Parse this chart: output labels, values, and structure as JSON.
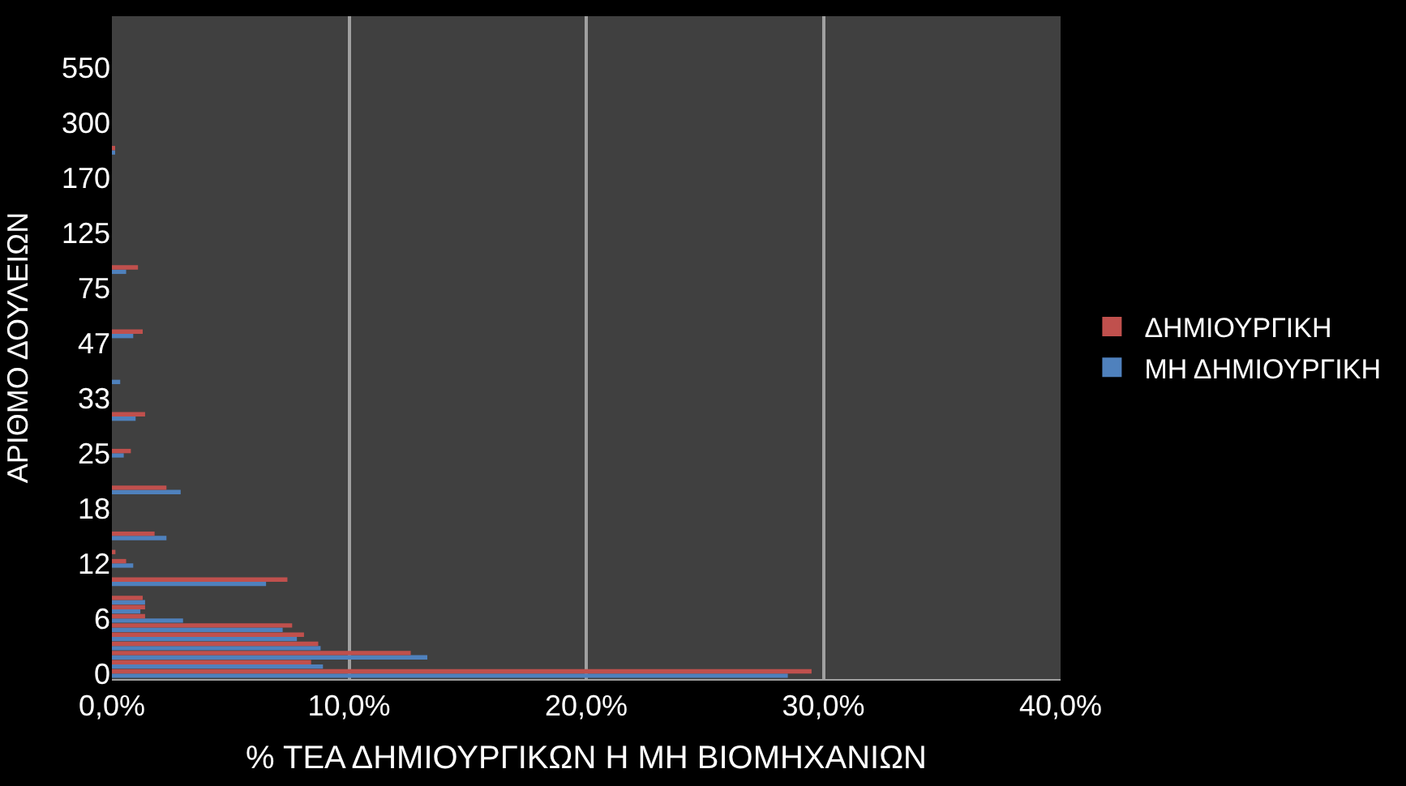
{
  "chart_data": {
    "type": "bar",
    "orientation": "horizontal",
    "xlabel": "% ΤΕΑ ΔΗΜΙΟΥΡΓΙΚΩΝ Η ΜΗ ΒΙΟΜΗΧΑΝΙΩΝ",
    "ylabel": "ΑΡΙΘΜΟ ΔΟΥΛΕΙΩΝ",
    "categories": [
      null,
      null,
      null,
      null,
      null,
      "550",
      null,
      null,
      null,
      null,
      null,
      "300",
      null,
      null,
      null,
      null,
      null,
      "170",
      null,
      null,
      null,
      null,
      null,
      "125",
      null,
      null,
      null,
      null,
      null,
      "75",
      null,
      null,
      null,
      null,
      null,
      "47",
      null,
      null,
      null,
      null,
      null,
      "33",
      null,
      null,
      null,
      null,
      null,
      "25",
      null,
      null,
      null,
      null,
      null,
      "18",
      null,
      null,
      null,
      null,
      null,
      "12",
      null,
      null,
      null,
      null,
      null,
      "6",
      null,
      null,
      null,
      null,
      null,
      "0"
    ],
    "series": [
      {
        "name": "ΔΗΜΙΟΥΡΓΙΚΗ",
        "color": "#c0504d",
        "values": [
          null,
          null,
          null,
          null,
          null,
          null,
          null,
          null,
          null,
          null,
          null,
          null,
          null,
          null,
          0.1,
          null,
          null,
          null,
          null,
          null,
          null,
          null,
          null,
          null,
          null,
          null,
          null,
          1.1,
          null,
          null,
          null,
          null,
          null,
          null,
          1.3,
          null,
          null,
          null,
          null,
          null,
          null,
          null,
          null,
          1.4,
          null,
          null,
          null,
          0.8,
          null,
          null,
          null,
          2.3,
          null,
          null,
          null,
          null,
          1.8,
          null,
          0.15,
          0.6,
          null,
          7.4,
          null,
          1.3,
          1.4,
          1.4,
          7.6,
          8.1,
          8.7,
          12.6,
          8.4,
          29.5
        ]
      },
      {
        "name": "ΜΗ ΔΗΜΙΟΥΡΓΙΚΗ",
        "color": "#4f81bd",
        "values": [
          null,
          null,
          null,
          null,
          null,
          null,
          null,
          null,
          null,
          null,
          null,
          null,
          null,
          null,
          0.1,
          null,
          null,
          null,
          null,
          null,
          null,
          null,
          null,
          null,
          null,
          null,
          null,
          0.6,
          null,
          null,
          null,
          null,
          null,
          null,
          0.9,
          null,
          null,
          null,
          null,
          0.35,
          null,
          null,
          null,
          1.0,
          null,
          null,
          null,
          0.5,
          null,
          null,
          null,
          2.9,
          null,
          null,
          null,
          null,
          2.3,
          null,
          null,
          0.9,
          null,
          6.5,
          null,
          1.4,
          1.2,
          3.0,
          7.2,
          7.8,
          8.8,
          13.3,
          8.9,
          28.5
        ]
      }
    ],
    "xlim": [
      0,
      40
    ],
    "xticks": [
      {
        "value": 0,
        "label": "0,0%"
      },
      {
        "value": 10,
        "label": "10,0%"
      },
      {
        "value": 20,
        "label": "20,0%"
      },
      {
        "value": 30,
        "label": "30,0%"
      },
      {
        "value": 40,
        "label": "40,0%"
      }
    ],
    "grid": "x",
    "legend": "right"
  }
}
